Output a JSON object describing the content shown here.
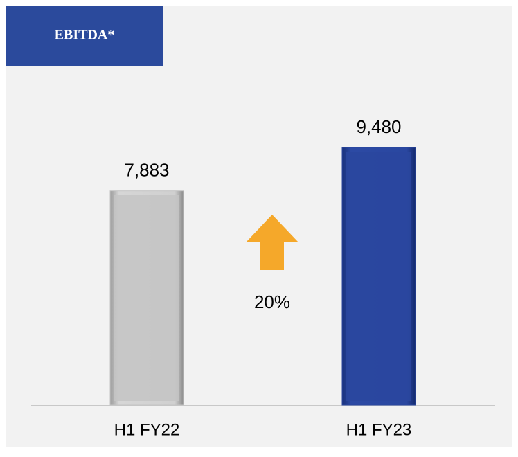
{
  "chart_data": {
    "type": "bar",
    "title": "EBITDA*",
    "categories": [
      "H1 FY22",
      "H1 FY23"
    ],
    "values": [
      7883,
      9480
    ],
    "value_labels": [
      "7,883",
      "9,480"
    ],
    "colors": [
      "#c4c4c4",
      "#2a479f"
    ],
    "annotation": "20%",
    "annotation_color": "#f5a82a",
    "title_color": "#2b4a9c"
  }
}
